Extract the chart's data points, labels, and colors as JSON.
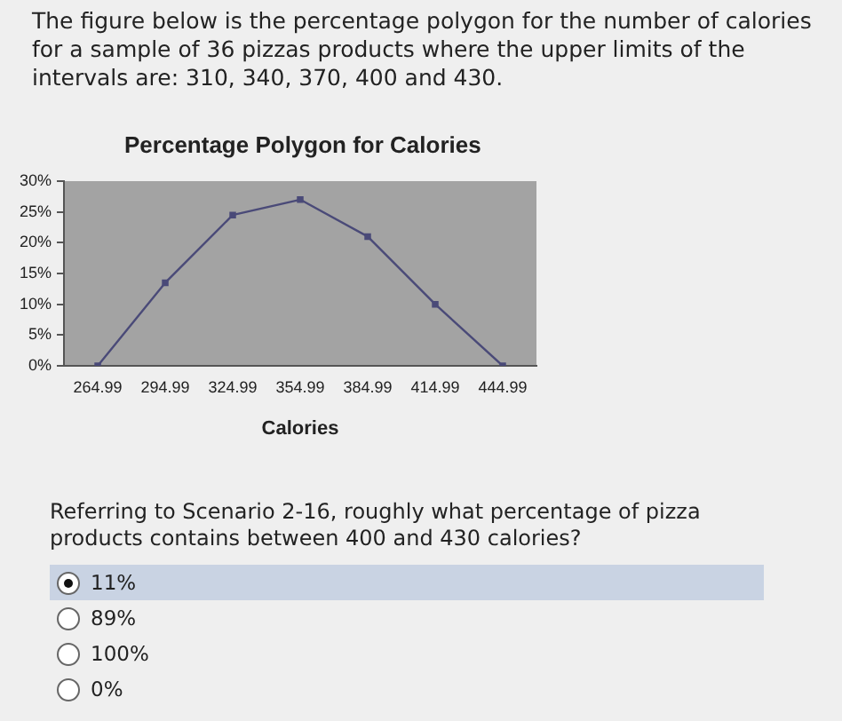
{
  "chart_data": {
    "type": "line",
    "title": "Percentage Polygon for Calories",
    "xlabel": "Calories",
    "categories": [
      "264.99",
      "294.99",
      "324.99",
      "354.99",
      "384.99",
      "414.99",
      "444.99"
    ],
    "series": [
      {
        "color": "#4a4a78",
        "values": [
          0,
          13.5,
          24.5,
          27,
          21,
          10,
          0
        ]
      }
    ],
    "ylim": [
      0,
      30
    ],
    "yticks": [
      {
        "value": 0,
        "label": "0%"
      },
      {
        "value": 5,
        "label": "5%"
      },
      {
        "value": 10,
        "label": "10%"
      },
      {
        "value": 15,
        "label": "15%"
      },
      {
        "value": 20,
        "label": "20%"
      },
      {
        "value": 25,
        "label": "25%"
      },
      {
        "value": 30,
        "label": "30%"
      }
    ],
    "grid": false,
    "legend": false,
    "marker": "square",
    "line_style": "solid",
    "annotations": [
      "The figure below is the percentage polygon for the number of calories for a sample of 36 pizzas products where the upper limits of the intervals are: 310, 340, 370, 400 and 430.",
      "Referring to Scenario 2-16, roughly what percentage of pizza products contains between 400 and 430 calories?",
      "11%",
      "89%",
      "100%",
      "0%"
    ]
  }
}
